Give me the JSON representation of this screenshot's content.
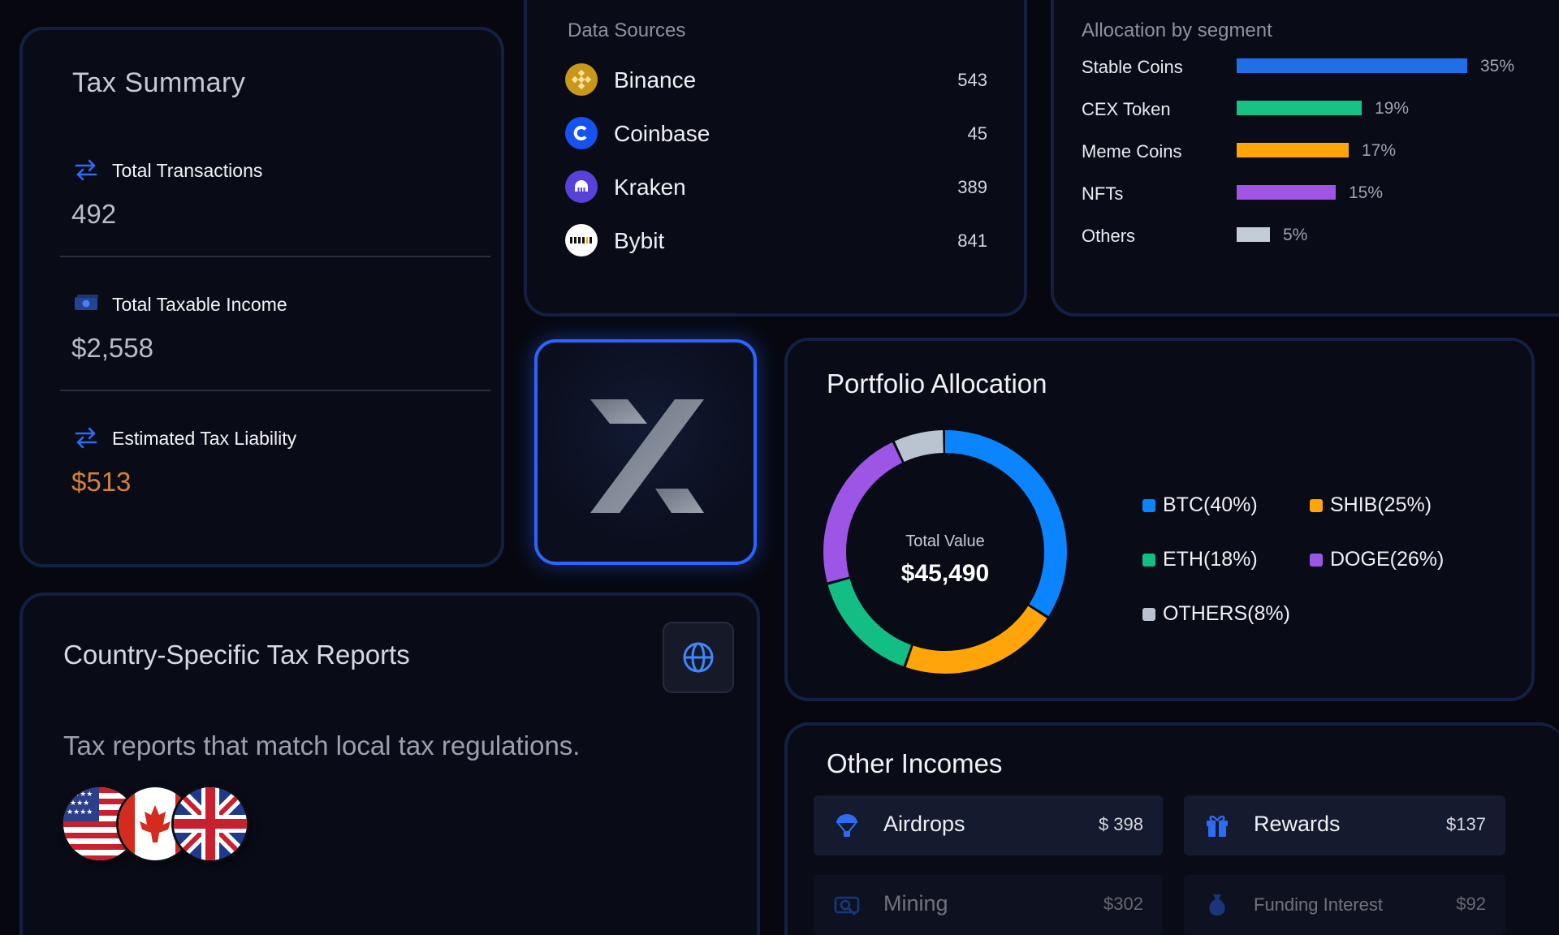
{
  "tax_summary": {
    "title": "Tax Summary",
    "total_transactions": {
      "label": "Total Transactions",
      "value": "492"
    },
    "total_taxable_income": {
      "label": "Total Taxable Income",
      "value": "$2,558"
    },
    "estimated_tax_liability": {
      "label": "Estimated Tax Liability",
      "value": "$513"
    }
  },
  "data_sources": {
    "title": "Data Sources",
    "items": [
      {
        "name": "Binance",
        "count": "543",
        "icon": "binance-logo",
        "color": "#f0b90b"
      },
      {
        "name": "Coinbase",
        "count": "45",
        "icon": "coinbase-logo",
        "color": "#1652f0"
      },
      {
        "name": "Kraken",
        "count": "389",
        "icon": "kraken-logo",
        "color": "#5741d9"
      },
      {
        "name": "Bybit",
        "count": "841",
        "icon": "bybit-logo",
        "color": "#ffffff"
      }
    ]
  },
  "allocation_by_segment": {
    "title": "Allocation by segment",
    "segments": [
      {
        "label": "Stable Coins",
        "pct": "35%",
        "value": 35,
        "color": "#1f6fe8"
      },
      {
        "label": "CEX Token",
        "pct": "19%",
        "value": 19,
        "color": "#17c384"
      },
      {
        "label": "Meme Coins",
        "pct": "17%",
        "value": 17,
        "color": "#ffa50a"
      },
      {
        "label": "NFTs",
        "pct": "15%",
        "value": 15,
        "color": "#a055e6"
      },
      {
        "label": "Others",
        "pct": "5%",
        "value": 5,
        "color": "#c3ccd7"
      }
    ]
  },
  "portfolio_allocation": {
    "title": "Portfolio Allocation",
    "center_caption": "Total Value",
    "center_value": "$45,490",
    "legend": [
      {
        "label": "BTC(40%)",
        "color": "#0a84ff"
      },
      {
        "label": "SHIB(25%)",
        "color": "#ffa50a"
      },
      {
        "label": "ETH(18%)",
        "color": "#12be84"
      },
      {
        "label": "DOGE(26%)",
        "color": "#9d55e6"
      },
      {
        "label": "OTHERS(8%)",
        "color": "#bac4d0"
      }
    ]
  },
  "chart_data": {
    "type": "pie",
    "categories": [
      "BTC",
      "SHIB",
      "ETH",
      "DOGE",
      "OTHERS"
    ],
    "values": [
      40,
      25,
      18,
      26,
      8
    ],
    "colors": [
      "#0a84ff",
      "#ffa50a",
      "#12be84",
      "#9d55e6",
      "#bac4d0"
    ]
  },
  "country_reports": {
    "title": "Country-Specific Tax Reports",
    "description": "Tax reports that match local tax regulations.",
    "flags": [
      "us-flag",
      "canada-flag",
      "uk-flag"
    ]
  },
  "other_incomes": {
    "title": "Other Incomes",
    "items": [
      {
        "label": "Airdrops",
        "amount": "$ 398",
        "icon": "parachute-icon"
      },
      {
        "label": "Rewards",
        "amount": "$137",
        "icon": "gift-icon"
      },
      {
        "label": "Mining",
        "amount": "$302",
        "icon": "mining-icon"
      },
      {
        "label": "Funding Interest",
        "amount": "$92",
        "icon": "money-bag-icon"
      }
    ]
  }
}
